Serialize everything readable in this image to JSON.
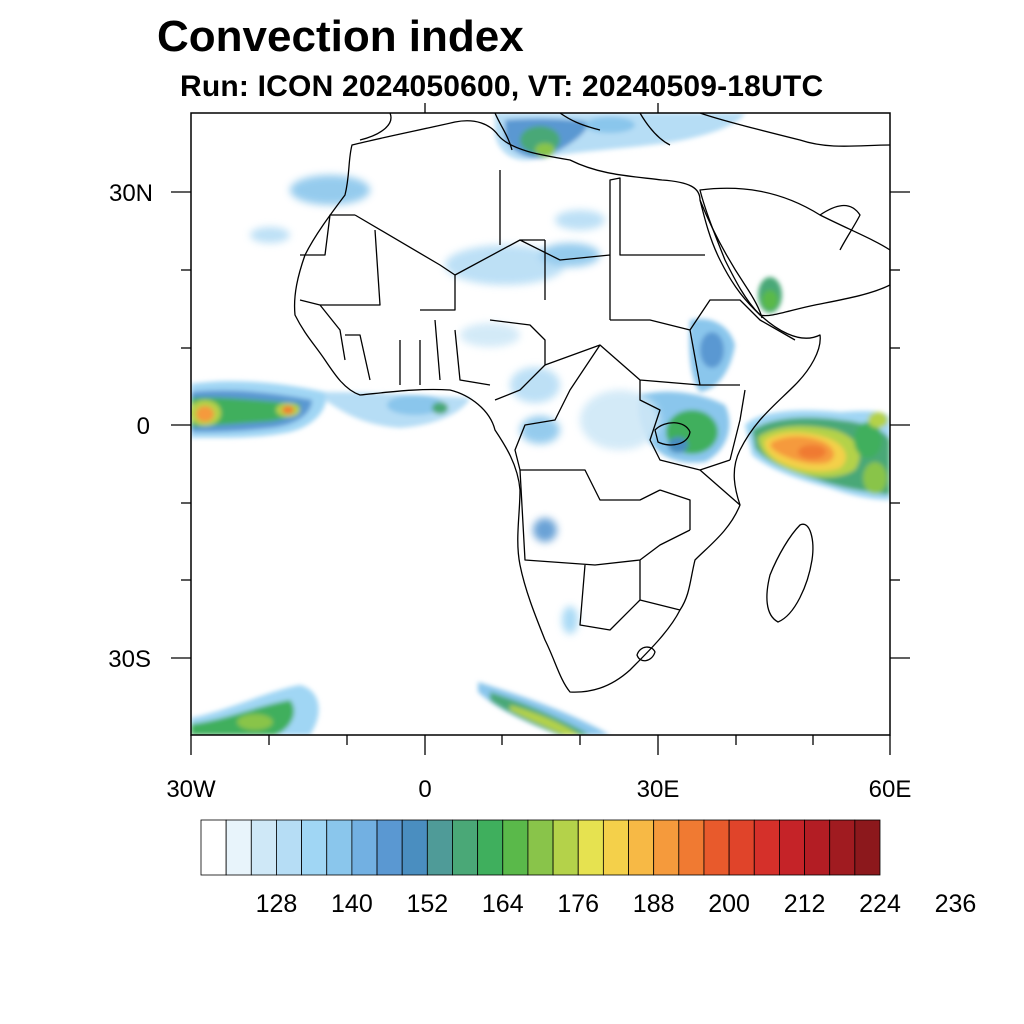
{
  "title": "Convection index",
  "subtitle": "Run: ICON 2024050600,  VT: 20240509-18UTC",
  "lat_labels": [
    "30N",
    "0",
    "30S"
  ],
  "lon_labels": [
    "30W",
    "0",
    "30E",
    "60E"
  ],
  "colorbar": {
    "labels": [
      "128",
      "140",
      "152",
      "164",
      "176",
      "188",
      "200",
      "212",
      "224",
      "236"
    ],
    "colors": [
      "#ffffff",
      "#e8f4fb",
      "#cfe8f7",
      "#b6ddf5",
      "#a0d6f4",
      "#8ac6ec",
      "#72b0e2",
      "#5a98d2",
      "#4a8ec0",
      "#4f9b98",
      "#4aa877",
      "#3faf5d",
      "#5ab94a",
      "#89c44a",
      "#b4d24a",
      "#e6e250",
      "#f4d04a",
      "#f7b945",
      "#f59a3c",
      "#f07a32",
      "#e85a2c",
      "#e0442a",
      "#d5302a",
      "#c52328",
      "#b31d24",
      "#a01b20",
      "#8c181c"
    ]
  },
  "map": {
    "lon_range": [
      -30,
      60
    ],
    "lat_range": [
      -40,
      40
    ],
    "variable": "Convection index"
  }
}
